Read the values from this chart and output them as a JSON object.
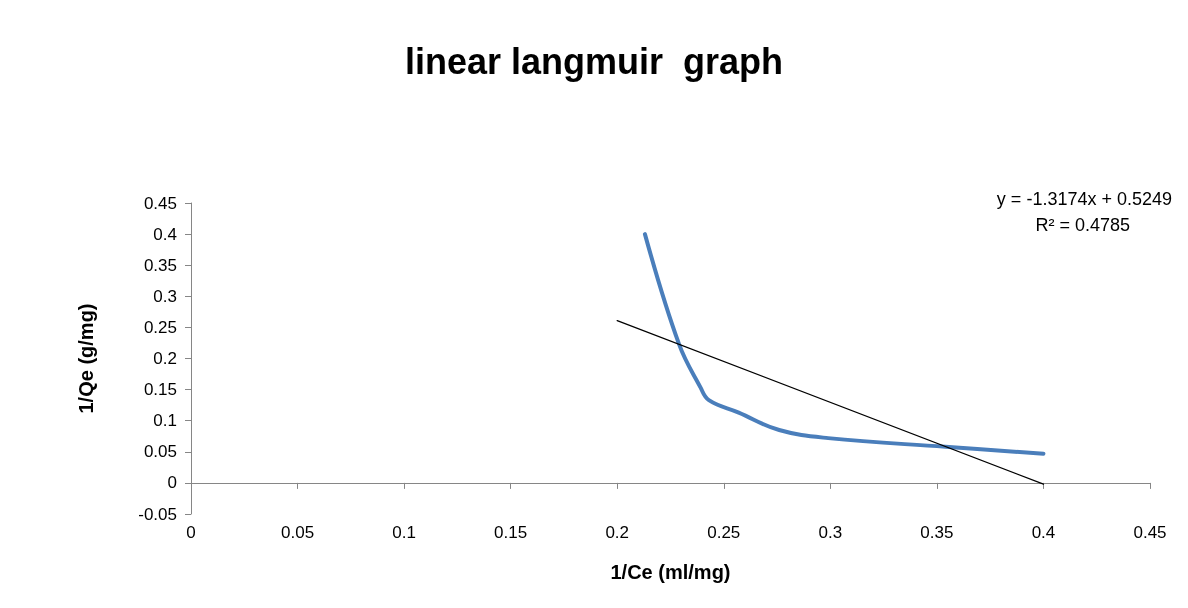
{
  "chart_data": {
    "type": "line",
    "title": "linear langmuir  graph",
    "xlabel": "1/Ce (ml/mg)",
    "ylabel": "1/Qe (g/mg)",
    "annotations": [
      "y = -1.3174x + 0.5249",
      "R² = 0.4785"
    ],
    "series": [
      {
        "color": "#4a7ebb",
        "x": [
          0.213,
          0.229,
          0.239,
          0.243,
          0.257,
          0.276,
          0.299,
          0.354,
          0.4
        ],
        "values": [
          0.4,
          0.223,
          0.154,
          0.133,
          0.113,
          0.085,
          0.072,
          0.058,
          0.047
        ]
      },
      {
        "type": "line",
        "color": "#000000",
        "x": [
          0.2,
          0.4
        ],
        "values": [
          0.261,
          -0.002
        ]
      }
    ],
    "xlim": [
      0,
      0.45
    ],
    "xticks": [
      0,
      0.05,
      0.1,
      0.15,
      0.2,
      0.25,
      0.3,
      0.35,
      0.4,
      0.45
    ],
    "ylim": [
      -0.05,
      0.45
    ],
    "yticks": [
      -0.05,
      0,
      0.05,
      0.1,
      0.15,
      0.2,
      0.25,
      0.3,
      0.35,
      0.4,
      0.45
    ],
    "grid": false,
    "marker": "none"
  }
}
